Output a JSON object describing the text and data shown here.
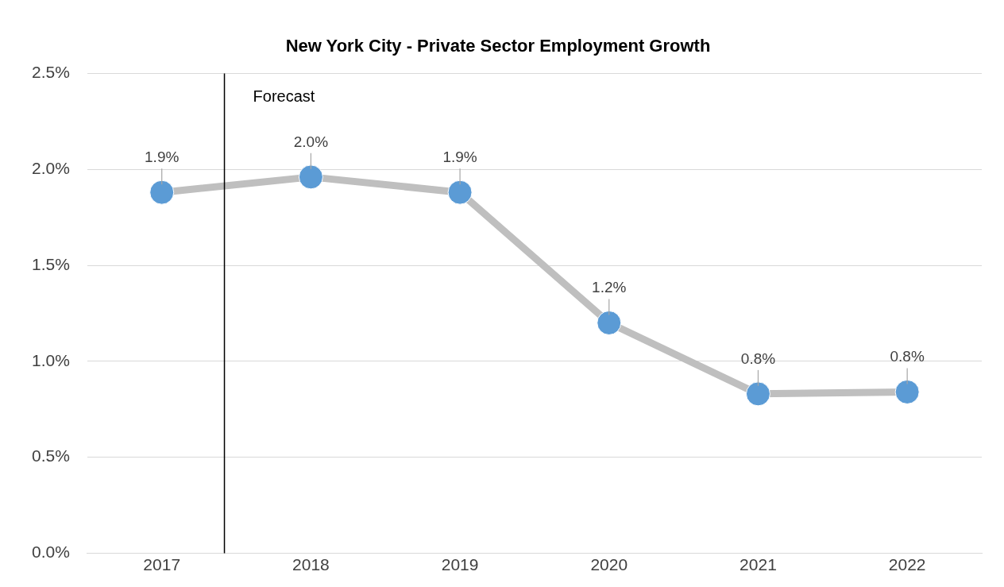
{
  "chart_data": {
    "type": "line",
    "title": "New York City - Private Sector Employment Growth",
    "x": [
      2017,
      2018,
      2019,
      2020,
      2021,
      2022
    ],
    "xlim": [
      2016.5,
      2022.5
    ],
    "xticks": [
      2017,
      2018,
      2019,
      2020,
      2021,
      2022
    ],
    "series": [
      {
        "color": "#5b9bd5",
        "values": [
          1.88,
          1.96,
          1.88,
          1.2,
          0.83,
          0.84
        ],
        "value_labels": [
          "1.9%",
          "2.0%",
          "1.9%",
          "1.2%",
          "0.8%",
          "0.8%"
        ]
      }
    ],
    "ylim": [
      0,
      2.5
    ],
    "yticks": [
      {
        "value": 0,
        "label": "0.0%"
      },
      {
        "value": 0.5,
        "label": "0.5%"
      },
      {
        "value": 1,
        "label": "1.0%"
      },
      {
        "value": 1.5,
        "label": "1.5%"
      },
      {
        "value": 2,
        "label": "2.0%"
      },
      {
        "value": 2.5,
        "label": "2.5%"
      }
    ],
    "ref_lines": [
      {
        "axis": "x",
        "value": 2017.42,
        "label": "Forecast",
        "color": "#000000"
      }
    ],
    "grid": "y",
    "legend": false,
    "marker": "circle",
    "line_style": "solid"
  }
}
